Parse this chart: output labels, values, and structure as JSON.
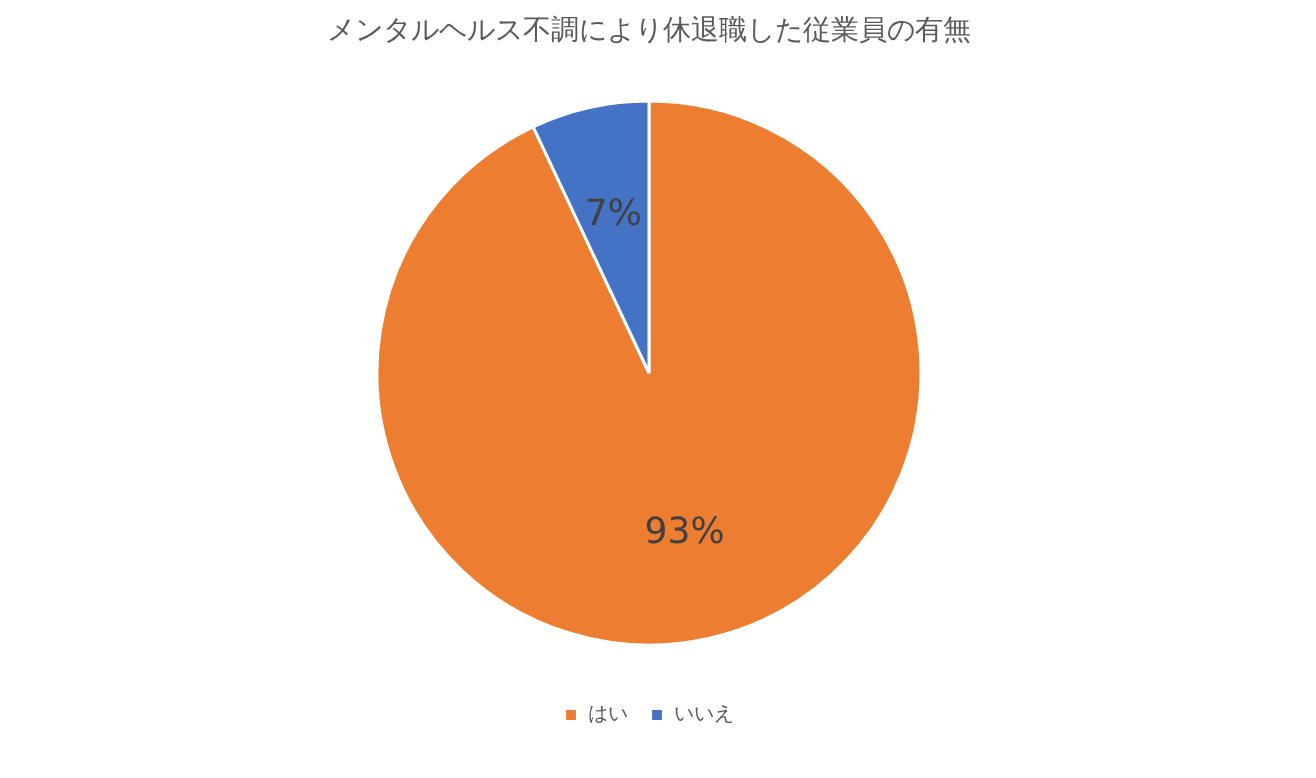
{
  "chart_data": {
    "type": "pie",
    "title": "メンタルヘルス不調により休退職した従業員の有無",
    "categories": [
      "はい",
      "いいえ"
    ],
    "values": [
      93,
      7
    ],
    "colors": [
      "#ed7d31",
      "#4472c4"
    ],
    "data_labels": true,
    "value_labels": [
      "93%",
      "7%"
    ],
    "legend": "bottom"
  }
}
